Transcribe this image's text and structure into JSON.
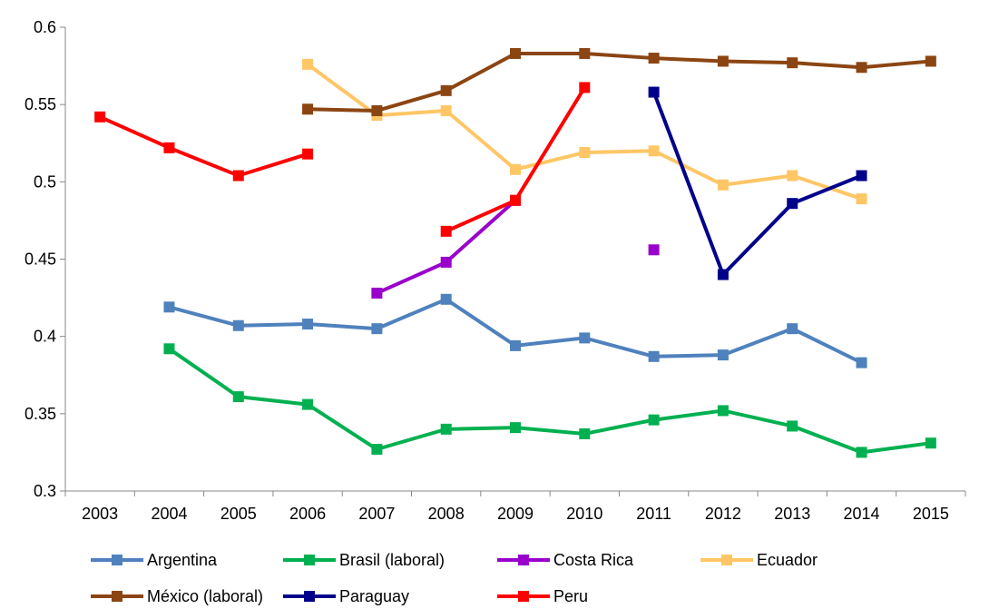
{
  "chart_data": {
    "type": "line",
    "title": "",
    "xlabel": "",
    "ylabel": "",
    "categories": [
      "2003",
      "2004",
      "2005",
      "2006",
      "2007",
      "2008",
      "2009",
      "2010",
      "2011",
      "2012",
      "2013",
      "2014",
      "2015"
    ],
    "ylim": [
      0.3,
      0.6
    ],
    "yticks": [
      "0.3",
      "0.35",
      "0.4",
      "0.45",
      "0.5",
      "0.55",
      "0.6"
    ],
    "grid": false,
    "legend_position": "bottom",
    "series": [
      {
        "name": "Argentina",
        "color": "#4F81BD",
        "values": [
          null,
          0.419,
          0.407,
          0.408,
          0.405,
          0.424,
          0.394,
          0.399,
          0.387,
          0.388,
          0.405,
          0.383,
          null
        ]
      },
      {
        "name": "Brasil (laboral)",
        "color": "#00B050",
        "values": [
          null,
          0.392,
          0.361,
          0.356,
          0.327,
          0.34,
          0.341,
          0.337,
          0.346,
          0.352,
          0.342,
          0.325,
          0.331
        ]
      },
      {
        "name": "Costa Rica",
        "color": "#9900CC",
        "values": [
          null,
          null,
          null,
          null,
          0.428,
          0.448,
          0.488,
          null,
          0.456,
          null,
          null,
          null,
          null
        ]
      },
      {
        "name": "Ecuador",
        "color": "#FFC666",
        "values": [
          null,
          null,
          null,
          0.576,
          0.543,
          0.546,
          0.508,
          0.519,
          0.52,
          0.498,
          0.504,
          0.489,
          null
        ]
      },
      {
        "name": "México (laboral)",
        "color": "#8B4513",
        "values": [
          null,
          null,
          null,
          0.547,
          0.546,
          0.559,
          0.583,
          0.583,
          0.58,
          0.578,
          0.577,
          0.574,
          0.578
        ]
      },
      {
        "name": "Paraguay",
        "color": "#00008B",
        "values": [
          null,
          null,
          null,
          null,
          null,
          null,
          null,
          null,
          0.558,
          0.44,
          0.486,
          0.504,
          null
        ]
      },
      {
        "name": "Peru",
        "color": "#FF0000",
        "values": [
          0.542,
          0.522,
          0.504,
          0.518,
          null,
          0.468,
          0.488,
          0.561,
          null,
          null,
          null,
          null,
          null
        ]
      }
    ]
  }
}
